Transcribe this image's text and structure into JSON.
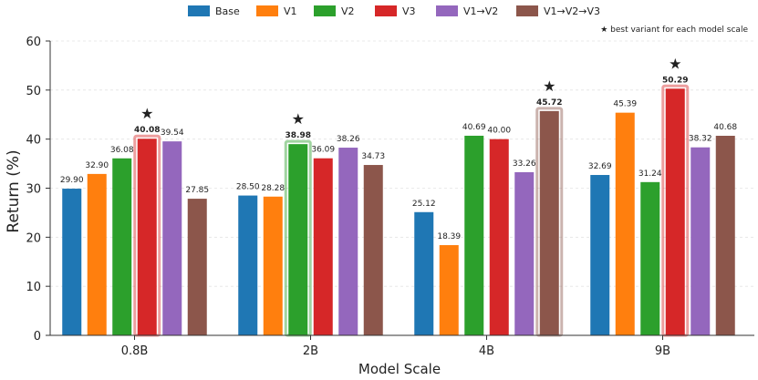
{
  "chart_data": {
    "type": "bar",
    "categories": [
      "0.8B",
      "2B",
      "4B",
      "9B"
    ],
    "series": [
      {
        "name": "Base",
        "color": "#1f77b4",
        "values": [
          29.9,
          28.5,
          25.12,
          32.69
        ]
      },
      {
        "name": "V1",
        "color": "#ff7f0e",
        "values": [
          32.9,
          28.28,
          18.39,
          45.39
        ]
      },
      {
        "name": "V2",
        "color": "#2ca02c",
        "values": [
          36.08,
          38.98,
          40.69,
          31.24
        ]
      },
      {
        "name": "V3",
        "color": "#d62728",
        "values": [
          40.08,
          36.09,
          40.0,
          50.29
        ]
      },
      {
        "name": "V1→V2",
        "color": "#9467bd",
        "values": [
          39.54,
          38.26,
          33.26,
          38.32
        ]
      },
      {
        "name": "V1→V2→V3",
        "color": "#8c564b",
        "values": [
          27.85,
          34.73,
          45.72,
          40.68
        ]
      }
    ],
    "value_labels": [
      [
        "29.90",
        "28.50",
        "25.12",
        "32.69"
      ],
      [
        "32.90",
        "28.28",
        "18.39",
        "45.39"
      ],
      [
        "36.08",
        "38.98",
        "40.69",
        "31.24"
      ],
      [
        "40.08",
        "36.09",
        "40.00",
        "50.29"
      ],
      [
        "39.54",
        "38.26",
        "33.26",
        "38.32"
      ],
      [
        "27.85",
        "34.73",
        "45.72",
        "40.68"
      ]
    ],
    "best_series_index": [
      3,
      2,
      5,
      3
    ],
    "xlabel": "Model Scale",
    "ylabel": "Return (%)",
    "ylim": [
      0,
      60
    ],
    "yticks": [
      "0",
      "10",
      "20",
      "30",
      "40",
      "50",
      "60"
    ],
    "annotation": "★ best variant for each model scale",
    "best_marker": "★",
    "legend_position": "top-center",
    "grid": true
  }
}
